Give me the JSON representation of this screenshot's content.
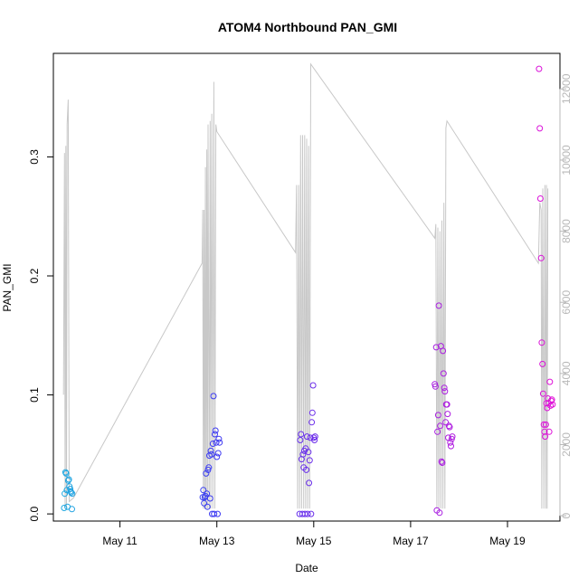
{
  "chart_data": {
    "type": "scatter",
    "title": "ATOM4 Northbound PAN_GMI",
    "xlabel": "Date",
    "ylabel": "PAN_GMI",
    "x_ticks": [
      "May 11",
      "May 13",
      "May 15",
      "May 17",
      "May 19"
    ],
    "xlim": [
      "2016-05-09T15:00",
      "2016-05-20T02:00"
    ],
    "ylim": [
      -0.006,
      0.387
    ],
    "y_ticks": [
      0.0,
      0.1,
      0.2,
      0.3
    ],
    "y_tick_labels": [
      "0.0",
      "0.1",
      "0.2",
      "0.3"
    ],
    "y2lim": [
      -150,
      13000
    ],
    "y2_ticks": [
      0,
      2000,
      4000,
      6000,
      8000,
      10000,
      12000
    ],
    "y2_tick_labels": [
      "0",
      "2000",
      "4000",
      "6000",
      "8000",
      "10000",
      "12000"
    ],
    "grid": false,
    "legend": "none",
    "colors": {
      "early": "#1fa8e0",
      "mid": "#3b3bf2",
      "late": "#e010d8",
      "altitude_line": "#c8c8c8"
    },
    "series": [
      {
        "kind": "points",
        "color_scale": "time",
        "points": [
          [
            "2016-05-09T20:20",
            0.005
          ],
          [
            "2016-05-09T20:40",
            0.017
          ],
          [
            "2016-05-09T21:00",
            0.035
          ],
          [
            "2016-05-09T21:20",
            0.034
          ],
          [
            "2016-05-09T21:40",
            0.02
          ],
          [
            "2016-05-09T22:00",
            0.006
          ],
          [
            "2016-05-09T22:20",
            0.028
          ],
          [
            "2016-05-09T22:40",
            0.029
          ],
          [
            "2016-05-09T23:00",
            0.023
          ],
          [
            "2016-05-09T23:20",
            0.021
          ],
          [
            "2016-05-09T23:30",
            0.019
          ],
          [
            "2016-05-09T23:50",
            0.018
          ],
          [
            "2016-05-10T00:10",
            0.004
          ],
          [
            "2016-05-10T00:20",
            0.017
          ],
          [
            "2016-05-12T17:00",
            0.014
          ],
          [
            "2016-05-12T17:20",
            0.02
          ],
          [
            "2016-05-12T17:40",
            0.009
          ],
          [
            "2016-05-12T18:00",
            0.014
          ],
          [
            "2016-05-12T18:20",
            0.015
          ],
          [
            "2016-05-12T18:40",
            0.034
          ],
          [
            "2016-05-12T19:00",
            0.017
          ],
          [
            "2016-05-12T19:20",
            0.006
          ],
          [
            "2016-05-12T19:40",
            0.037
          ],
          [
            "2016-05-12T20:00",
            0.039
          ],
          [
            "2016-05-12T20:20",
            0.049
          ],
          [
            "2016-05-12T20:40",
            0.013
          ],
          [
            "2016-05-12T21:00",
            0.053
          ],
          [
            "2016-05-12T21:20",
            0.05
          ],
          [
            "2016-05-12T21:40",
            0.0
          ],
          [
            "2016-05-12T22:00",
            0.059
          ],
          [
            "2016-05-12T22:20",
            0.099
          ],
          [
            "2016-05-12T22:40",
            0.0
          ],
          [
            "2016-05-12T23:00",
            0.067
          ],
          [
            "2016-05-12T23:20",
            0.07
          ],
          [
            "2016-05-12T23:40",
            0.06
          ],
          [
            "2016-05-13T00:00",
            0.048
          ],
          [
            "2016-05-13T00:20",
            0.0
          ],
          [
            "2016-05-13T00:40",
            0.051
          ],
          [
            "2016-05-13T01:00",
            0.063
          ],
          [
            "2016-05-13T01:20",
            0.06
          ],
          [
            "2016-05-14T17:00",
            0.0
          ],
          [
            "2016-05-14T17:20",
            0.062
          ],
          [
            "2016-05-14T17:40",
            0.067
          ],
          [
            "2016-05-14T18:00",
            0.046
          ],
          [
            "2016-05-14T18:20",
            0.0
          ],
          [
            "2016-05-14T18:40",
            0.05
          ],
          [
            "2016-05-14T19:00",
            0.039
          ],
          [
            "2016-05-14T19:20",
            0.053
          ],
          [
            "2016-05-14T19:40",
            0.0
          ],
          [
            "2016-05-14T20:00",
            0.055
          ],
          [
            "2016-05-14T20:20",
            0.037
          ],
          [
            "2016-05-14T20:40",
            0.065
          ],
          [
            "2016-05-14T21:00",
            0.0
          ],
          [
            "2016-05-14T21:20",
            0.052
          ],
          [
            "2016-05-14T21:40",
            0.026
          ],
          [
            "2016-05-14T22:00",
            0.045
          ],
          [
            "2016-05-14T22:20",
            0.064
          ],
          [
            "2016-05-14T22:40",
            0.0
          ],
          [
            "2016-05-14T23:00",
            0.077
          ],
          [
            "2016-05-14T23:20",
            0.085
          ],
          [
            "2016-05-14T23:40",
            0.108
          ],
          [
            "2016-05-15T00:00",
            0.064
          ],
          [
            "2016-05-15T00:20",
            0.062
          ],
          [
            "2016-05-15T00:40",
            0.065
          ],
          [
            "2016-05-17T12:00",
            0.109
          ],
          [
            "2016-05-17T12:20",
            0.107
          ],
          [
            "2016-05-17T12:40",
            0.14
          ],
          [
            "2016-05-17T13:00",
            0.003
          ],
          [
            "2016-05-17T13:20",
            0.069
          ],
          [
            "2016-05-17T13:40",
            0.083
          ],
          [
            "2016-05-17T14:00",
            0.175
          ],
          [
            "2016-05-17T14:20",
            0.001
          ],
          [
            "2016-05-17T14:40",
            0.074
          ],
          [
            "2016-05-17T15:00",
            0.141
          ],
          [
            "2016-05-17T15:20",
            0.044
          ],
          [
            "2016-05-17T15:40",
            0.043
          ],
          [
            "2016-05-17T16:00",
            0.137
          ],
          [
            "2016-05-17T16:20",
            0.118
          ],
          [
            "2016-05-17T16:40",
            0.106
          ],
          [
            "2016-05-17T17:00",
            0.103
          ],
          [
            "2016-05-17T17:20",
            0.077
          ],
          [
            "2016-05-17T17:40",
            0.092
          ],
          [
            "2016-05-17T18:00",
            0.092
          ],
          [
            "2016-05-17T18:20",
            0.084
          ],
          [
            "2016-05-17T18:40",
            0.064
          ],
          [
            "2016-05-17T19:00",
            0.074
          ],
          [
            "2016-05-17T19:20",
            0.073
          ],
          [
            "2016-05-17T19:40",
            0.06
          ],
          [
            "2016-05-17T20:00",
            0.057
          ],
          [
            "2016-05-17T20:20",
            0.063
          ],
          [
            "2016-05-17T20:40",
            0.065
          ],
          [
            "2016-05-19T15:40",
            0.374
          ],
          [
            "2016-05-19T16:00",
            0.324
          ],
          [
            "2016-05-19T16:20",
            0.265
          ],
          [
            "2016-05-19T16:40",
            0.215
          ],
          [
            "2016-05-19T17:00",
            0.144
          ],
          [
            "2016-05-19T17:20",
            0.126
          ],
          [
            "2016-05-19T17:40",
            0.101
          ],
          [
            "2016-05-19T18:00",
            0.075
          ],
          [
            "2016-05-19T18:20",
            0.069
          ],
          [
            "2016-05-19T18:40",
            0.065
          ],
          [
            "2016-05-19T19:00",
            0.075
          ],
          [
            "2016-05-19T19:20",
            0.093
          ],
          [
            "2016-05-19T19:40",
            0.089
          ],
          [
            "2016-05-19T20:00",
            0.097
          ],
          [
            "2016-05-19T20:20",
            0.093
          ],
          [
            "2016-05-19T20:40",
            0.069
          ],
          [
            "2016-05-19T21:00",
            0.111
          ],
          [
            "2016-05-19T21:20",
            0.091
          ],
          [
            "2016-05-19T21:40",
            0.095
          ],
          [
            "2016-05-19T22:00",
            0.096
          ],
          [
            "2016-05-19T22:20",
            0.092
          ]
        ]
      },
      {
        "kind": "altitude_line",
        "axis": "right",
        "points": [
          [
            "2016-05-09T20:00",
            3400
          ],
          [
            "2016-05-09T20:30",
            10200
          ],
          [
            "2016-05-09T20:50",
            200
          ],
          [
            "2016-05-09T21:10",
            10400
          ],
          [
            "2016-05-09T21:30",
            200
          ],
          [
            "2016-05-09T21:50",
            11000
          ],
          [
            "2016-05-09T22:20",
            11700
          ],
          [
            "2016-05-09T22:50",
            400
          ],
          [
            "2016-05-10T01:00",
            500
          ],
          [
            "2016-05-12T16:40",
            7100
          ],
          [
            "2016-05-12T17:00",
            8600
          ],
          [
            "2016-05-12T17:20",
            200
          ],
          [
            "2016-05-12T17:40",
            8600
          ],
          [
            "2016-05-12T18:00",
            200
          ],
          [
            "2016-05-12T18:20",
            9800
          ],
          [
            "2016-05-12T18:40",
            200
          ],
          [
            "2016-05-12T19:00",
            10300
          ],
          [
            "2016-05-12T19:20",
            200
          ],
          [
            "2016-05-12T19:40",
            11000
          ],
          [
            "2016-05-12T20:10",
            200
          ],
          [
            "2016-05-12T20:40",
            11100
          ],
          [
            "2016-05-12T21:00",
            200
          ],
          [
            "2016-05-12T21:30",
            11300
          ],
          [
            "2016-05-12T22:00",
            200
          ],
          [
            "2016-05-12T22:30",
            12200
          ],
          [
            "2016-05-12T23:00",
            200
          ],
          [
            "2016-05-12T23:30",
            11000
          ],
          [
            "2016-05-13T00:00",
            10800
          ],
          [
            "2016-05-14T15:00",
            7400
          ],
          [
            "2016-05-14T15:30",
            9300
          ],
          [
            "2016-05-14T16:00",
            200
          ],
          [
            "2016-05-14T16:30",
            9300
          ],
          [
            "2016-05-14T17:00",
            200
          ],
          [
            "2016-05-14T17:30",
            10700
          ],
          [
            "2016-05-14T18:00",
            200
          ],
          [
            "2016-05-14T18:30",
            10700
          ],
          [
            "2016-05-14T19:00",
            200
          ],
          [
            "2016-05-14T19:30",
            10700
          ],
          [
            "2016-05-14T20:00",
            200
          ],
          [
            "2016-05-14T20:30",
            10600
          ],
          [
            "2016-05-14T21:00",
            200
          ],
          [
            "2016-05-14T21:30",
            10400
          ],
          [
            "2016-05-14T22:00",
            200
          ],
          [
            "2016-05-14T22:30",
            12700
          ],
          [
            "2016-05-17T12:00",
            7800
          ],
          [
            "2016-05-17T12:30",
            8200
          ],
          [
            "2016-05-17T13:00",
            200
          ],
          [
            "2016-05-17T13:30",
            8100
          ],
          [
            "2016-05-17T14:00",
            200
          ],
          [
            "2016-05-17T14:30",
            8000
          ],
          [
            "2016-05-17T15:00",
            200
          ],
          [
            "2016-05-17T15:30",
            8300
          ],
          [
            "2016-05-17T16:00",
            200
          ],
          [
            "2016-05-17T16:30",
            8800
          ],
          [
            "2016-05-17T17:00",
            200
          ],
          [
            "2016-05-17T17:30",
            10900
          ],
          [
            "2016-05-17T18:00",
            11100
          ],
          [
            "2016-05-19T15:20",
            7100
          ],
          [
            "2016-05-19T16:00",
            8800
          ],
          [
            "2016-05-19T16:40",
            8600
          ],
          [
            "2016-05-19T17:00",
            200
          ],
          [
            "2016-05-19T17:30",
            9200
          ],
          [
            "2016-05-19T18:00",
            200
          ],
          [
            "2016-05-19T18:30",
            9300
          ],
          [
            "2016-05-19T19:00",
            200
          ],
          [
            "2016-05-19T19:20",
            9300
          ],
          [
            "2016-05-19T19:40",
            200
          ],
          [
            "2016-05-19T20:00",
            9200
          ]
        ]
      }
    ]
  }
}
